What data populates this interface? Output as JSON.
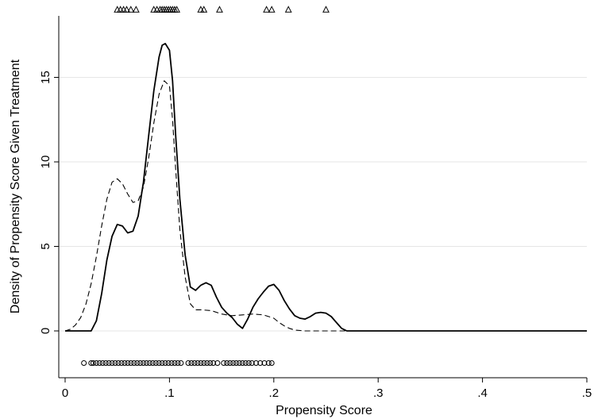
{
  "chart_data": {
    "type": "line",
    "title": "",
    "xlabel": "Propensity Score",
    "ylabel": "Density of Propensity Score Given Treatment",
    "xlim": [
      0,
      0.5
    ],
    "ylim": [
      -2,
      19
    ],
    "x_ticks": [
      0,
      0.1,
      0.2,
      0.3,
      0.4,
      0.5
    ],
    "x_tick_labels": [
      "0",
      ".1",
      ".2",
      ".3",
      ".4",
      ".5"
    ],
    "y_ticks": [
      0,
      5,
      10,
      15
    ],
    "y_tick_labels": [
      "0",
      "5",
      "10",
      "15"
    ],
    "grid": "horizontal",
    "legend": "none",
    "series": [
      {
        "style": "solid",
        "color": "#000000",
        "x": [
          0,
          0.025,
          0.03,
          0.035,
          0.04,
          0.045,
          0.05,
          0.055,
          0.06,
          0.065,
          0.07,
          0.075,
          0.08,
          0.085,
          0.09,
          0.093,
          0.096,
          0.1,
          0.103,
          0.106,
          0.11,
          0.115,
          0.12,
          0.125,
          0.13,
          0.135,
          0.14,
          0.145,
          0.15,
          0.155,
          0.16,
          0.165,
          0.17,
          0.175,
          0.18,
          0.185,
          0.19,
          0.195,
          0.2,
          0.205,
          0.21,
          0.215,
          0.22,
          0.225,
          0.23,
          0.235,
          0.24,
          0.245,
          0.25,
          0.255,
          0.26,
          0.265,
          0.27,
          0.275,
          0.5
        ],
        "y": [
          0,
          0,
          0.6,
          2.2,
          4.2,
          5.6,
          6.3,
          6.2,
          5.8,
          5.9,
          6.8,
          8.8,
          11.5,
          14.2,
          16.2,
          16.9,
          17.0,
          16.6,
          14.8,
          11.5,
          7.8,
          4.5,
          2.6,
          2.4,
          2.7,
          2.85,
          2.7,
          2.0,
          1.4,
          1.05,
          0.8,
          0.4,
          0.15,
          0.7,
          1.4,
          1.9,
          2.3,
          2.65,
          2.75,
          2.4,
          1.8,
          1.3,
          0.9,
          0.75,
          0.7,
          0.85,
          1.05,
          1.1,
          1.05,
          0.85,
          0.5,
          0.15,
          0,
          0,
          0
        ]
      },
      {
        "style": "dashed",
        "color": "#000000",
        "x": [
          0,
          0.005,
          0.01,
          0.015,
          0.02,
          0.025,
          0.03,
          0.035,
          0.04,
          0.045,
          0.05,
          0.055,
          0.06,
          0.065,
          0.07,
          0.075,
          0.08,
          0.085,
          0.09,
          0.095,
          0.1,
          0.103,
          0.106,
          0.11,
          0.115,
          0.12,
          0.125,
          0.13,
          0.14,
          0.15,
          0.16,
          0.17,
          0.18,
          0.19,
          0.2,
          0.205,
          0.21,
          0.215,
          0.22,
          0.23,
          0.24,
          0.25,
          0.26,
          0.27,
          0.5
        ],
        "y": [
          0,
          0.1,
          0.35,
          0.8,
          1.6,
          2.8,
          4.4,
          6.2,
          7.8,
          8.8,
          9.0,
          8.7,
          8.1,
          7.6,
          7.7,
          8.5,
          10.2,
          12.3,
          14.0,
          14.8,
          14.5,
          12.5,
          9.5,
          6.0,
          3.2,
          1.6,
          1.25,
          1.25,
          1.2,
          1.0,
          0.9,
          0.95,
          1.0,
          0.95,
          0.75,
          0.5,
          0.3,
          0.15,
          0.05,
          0,
          0,
          0,
          0,
          0,
          0
        ]
      }
    ],
    "rug_top_marker": "triangle",
    "rug_top_y": 19,
    "rug_top_x": [
      0.05,
      0.053,
      0.056,
      0.059,
      0.063,
      0.068,
      0.085,
      0.088,
      0.091,
      0.093,
      0.095,
      0.097,
      0.099,
      0.101,
      0.103,
      0.105,
      0.107,
      0.13,
      0.133,
      0.148,
      0.193,
      0.198,
      0.214,
      0.25
    ],
    "rug_bottom_marker": "circle",
    "rug_bottom_y": -1.9,
    "rug_bottom_x": [
      0.018,
      0.025,
      0.027,
      0.03,
      0.033,
      0.036,
      0.039,
      0.042,
      0.045,
      0.048,
      0.051,
      0.054,
      0.057,
      0.06,
      0.063,
      0.066,
      0.069,
      0.072,
      0.075,
      0.078,
      0.081,
      0.084,
      0.087,
      0.09,
      0.093,
      0.096,
      0.099,
      0.102,
      0.105,
      0.108,
      0.111,
      0.118,
      0.121,
      0.124,
      0.127,
      0.13,
      0.133,
      0.136,
      0.139,
      0.142,
      0.146,
      0.152,
      0.155,
      0.158,
      0.161,
      0.164,
      0.167,
      0.17,
      0.173,
      0.176,
      0.179,
      0.183,
      0.187,
      0.191,
      0.195,
      0.198
    ]
  }
}
